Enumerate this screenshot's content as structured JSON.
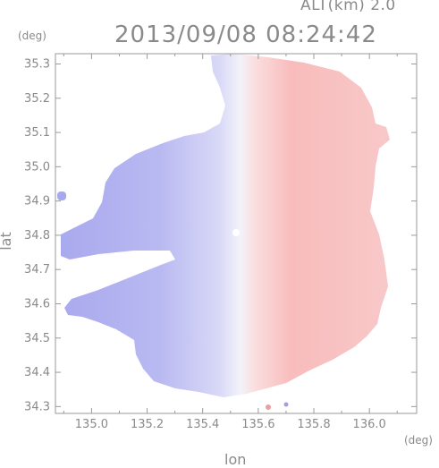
{
  "header": {
    "alt_label": "ALT(km) 2.0",
    "datetime": "2013/09/08 08:24:42",
    "unit_y": "(deg)",
    "unit_x": "(deg)"
  },
  "chart_data": {
    "type": "heatmap",
    "xlabel": "lon",
    "ylabel": "lat",
    "xlim": [
      134.87,
      136.17
    ],
    "ylim": [
      34.28,
      35.33
    ],
    "xticks": [
      135.0,
      135.2,
      135.4,
      135.6,
      135.8,
      136.0
    ],
    "xtick_labels": [
      "135.0",
      "135.2",
      "135.4",
      "135.6",
      "135.8",
      "136.0"
    ],
    "yticks": [
      34.3,
      34.4,
      34.5,
      34.6,
      34.7,
      34.8,
      34.9,
      35.0,
      35.1,
      35.2,
      35.3
    ],
    "ytick_labels": [
      "34.3",
      "34.4",
      "34.5",
      "34.6",
      "34.7",
      "34.8",
      "34.9",
      "35.0",
      "35.1",
      "35.2",
      "35.3"
    ],
    "grid": false,
    "radar_center": [
      135.53,
      34.82
    ],
    "colors": {
      "approaching": "#b4b4f0",
      "receding": "#f8b8b8",
      "near_zero": "#f4f4fb",
      "axis": "#9a9a9a"
    }
  }
}
